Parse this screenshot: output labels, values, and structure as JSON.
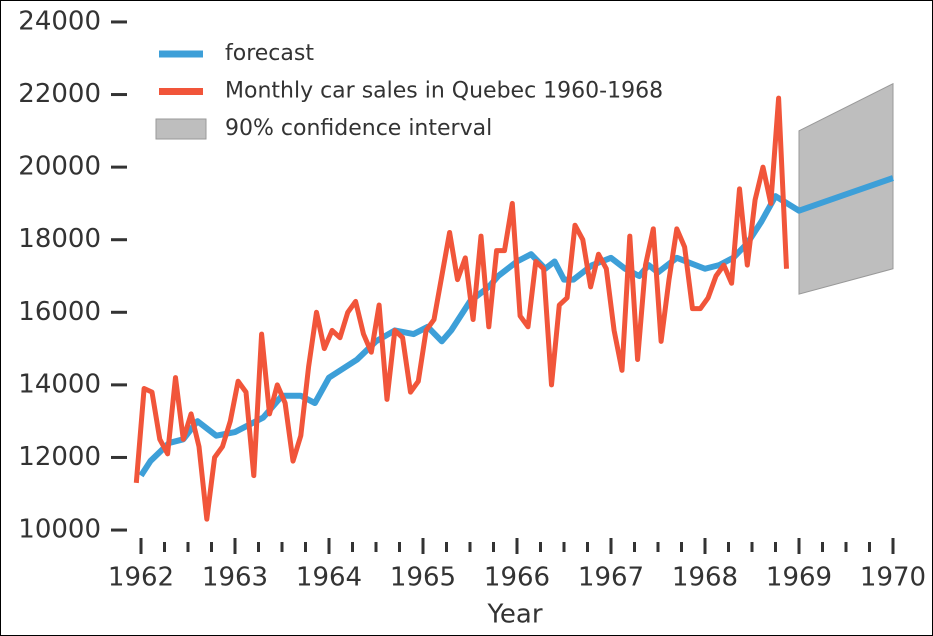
{
  "chart_data": {
    "type": "line",
    "x_label": "Year",
    "xlim": [
      1961.9,
      1970.05
    ],
    "ylim": [
      9800,
      24200
    ],
    "xticks": [
      1962,
      1963,
      1964,
      1965,
      1966,
      1967,
      1968,
      1969,
      1970
    ],
    "xminorticks": [
      1962.25,
      1962.5,
      1962.75,
      1963.25,
      1963.5,
      1963.75,
      1964.25,
      1964.5,
      1964.75,
      1965.25,
      1965.5,
      1965.75,
      1966.25,
      1966.5,
      1966.75,
      1967.25,
      1967.5,
      1967.75,
      1968.25,
      1968.5,
      1968.75,
      1969.25,
      1969.5,
      1969.75
    ],
    "yticks": [
      10000,
      12000,
      14000,
      16000,
      18000,
      20000,
      22000,
      24000
    ],
    "grid": false,
    "legend": "upper left",
    "series": [
      {
        "name": "forecast",
        "color": "#3d9fd8",
        "x": [
          1962.0,
          1962.1,
          1962.3,
          1962.45,
          1962.6,
          1962.8,
          1963.0,
          1963.3,
          1963.5,
          1963.7,
          1963.85,
          1964.0,
          1964.3,
          1964.5,
          1964.7,
          1964.9,
          1965.05,
          1965.2,
          1965.3,
          1965.5,
          1965.7,
          1965.8,
          1966.0,
          1966.15,
          1966.3,
          1966.4,
          1966.5,
          1966.6,
          1966.8,
          1967.0,
          1967.15,
          1967.3,
          1967.4,
          1967.5,
          1967.7,
          1967.9,
          1968.0,
          1968.15,
          1968.3,
          1968.45,
          1968.6,
          1968.75,
          1969.0,
          1969.5,
          1970.0
        ],
        "values": [
          11500,
          11900,
          12400,
          12500,
          13000,
          12600,
          12700,
          13100,
          13700,
          13700,
          13500,
          14200,
          14700,
          15200,
          15500,
          15400,
          15600,
          15200,
          15500,
          16300,
          16700,
          17000,
          17400,
          17600,
          17200,
          17400,
          16900,
          16900,
          17300,
          17500,
          17200,
          17000,
          17300,
          17100,
          17500,
          17300,
          17200,
          17300,
          17500,
          17900,
          18500,
          19200,
          18800,
          19250,
          19700
        ]
      },
      {
        "name": "Monthly car sales in Quebec 1960-1968",
        "color": "#f1553a",
        "x": [
          1961.95,
          1962.033,
          1962.117,
          1962.2,
          1962.283,
          1962.367,
          1962.45,
          1962.533,
          1962.617,
          1962.7,
          1962.783,
          1962.867,
          1962.95,
          1963.033,
          1963.117,
          1963.2,
          1963.283,
          1963.367,
          1963.45,
          1963.533,
          1963.617,
          1963.7,
          1963.783,
          1963.867,
          1963.95,
          1964.033,
          1964.117,
          1964.2,
          1964.283,
          1964.367,
          1964.45,
          1964.533,
          1964.617,
          1964.7,
          1964.783,
          1964.867,
          1964.95,
          1965.033,
          1965.117,
          1965.2,
          1965.283,
          1965.367,
          1965.45,
          1965.533,
          1965.617,
          1965.7,
          1965.783,
          1965.867,
          1965.95,
          1966.033,
          1966.117,
          1966.2,
          1966.283,
          1966.367,
          1966.45,
          1966.533,
          1966.617,
          1966.7,
          1966.783,
          1966.867,
          1966.95,
          1967.033,
          1967.117,
          1967.2,
          1967.283,
          1967.367,
          1967.45,
          1967.533,
          1967.617,
          1967.7,
          1967.783,
          1967.867,
          1967.95,
          1968.033,
          1968.117,
          1968.2,
          1968.283,
          1968.367,
          1968.45,
          1968.533,
          1968.617,
          1968.7,
          1968.783,
          1968.867
        ],
        "values": [
          11300,
          13900,
          13800,
          12500,
          12100,
          14200,
          12500,
          13200,
          12300,
          10300,
          12000,
          12300,
          13000,
          14100,
          13800,
          11500,
          15400,
          13200,
          14000,
          13500,
          11900,
          12600,
          14500,
          16000,
          15000,
          15500,
          15300,
          16000,
          16300,
          15400,
          14900,
          16200,
          13600,
          15500,
          15300,
          13800,
          14100,
          15500,
          15800,
          17000,
          18200,
          16900,
          17500,
          15800,
          18100,
          15600,
          17700,
          17700,
          19000,
          15900,
          15600,
          17400,
          17200,
          14000,
          16200,
          16400,
          18400,
          18000,
          16700,
          17600,
          17200,
          15500,
          14400,
          18100,
          14700,
          17300,
          18300,
          15200,
          16900,
          18300,
          17800,
          16100,
          16100,
          16400,
          17000,
          17300,
          16800,
          19400,
          17300,
          19100,
          20000,
          19000,
          21900,
          17200
        ]
      },
      {
        "name": "90% confidence interval",
        "color": "#bebebe",
        "type": "band",
        "x": [
          1969.0,
          1970.0
        ],
        "lower": [
          16500,
          17200
        ],
        "upper": [
          21000,
          22300
        ]
      }
    ]
  }
}
